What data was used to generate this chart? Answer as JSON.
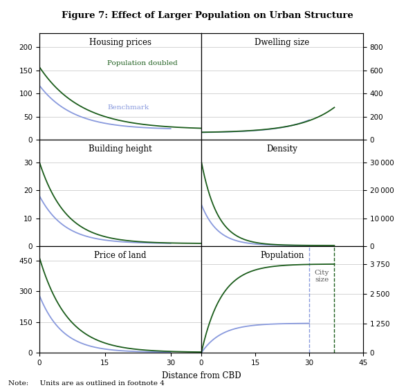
{
  "title": "Figure 7: Effect of Larger Population on Urban Structure",
  "note": "Note:     Units are as outlined in footnote 4",
  "color_benchmark": "#8899dd",
  "color_doubled": "#1a5c1a",
  "xlabel": "Distance from CBD",
  "subplots": [
    {
      "title": "Housing prices",
      "yticks_left": [
        0,
        50,
        100,
        150,
        200
      ],
      "yticks_right": [],
      "ylim": [
        0,
        230
      ]
    },
    {
      "title": "Dwelling size",
      "yticks_left": [],
      "yticks_right": [
        0,
        200,
        400,
        600,
        800
      ],
      "ylim": [
        0,
        920
      ]
    },
    {
      "title": "Building height",
      "yticks_left": [
        0,
        10,
        20,
        30
      ],
      "yticks_right": [],
      "ylim": [
        0,
        38
      ]
    },
    {
      "title": "Density",
      "yticks_left": [],
      "yticks_right": [
        0,
        10000,
        20000,
        30000
      ],
      "ylim": [
        0,
        38000
      ]
    },
    {
      "title": "Price of land",
      "yticks_left": [
        0,
        150,
        300,
        450
      ],
      "yticks_right": [],
      "ylim": [
        0,
        520
      ]
    },
    {
      "title": "Population",
      "yticks_left": [],
      "yticks_right": [
        0,
        1250,
        2500,
        3750
      ],
      "ylim": [
        0,
        4500
      ]
    }
  ],
  "x_left_max": 37,
  "x_right_max": 45,
  "x_ticks_left": [
    0,
    15,
    30
  ],
  "x_ticks_right": [
    0,
    15,
    30,
    45
  ],
  "city_size_benchmark": 30,
  "city_size_doubled": 37,
  "legend_pop_doubled": "Population doubled",
  "legend_benchmark": "Benchmark",
  "city_size_label": "City\nsize",
  "grid_color": "#cccccc",
  "grid_lw": 0.6
}
